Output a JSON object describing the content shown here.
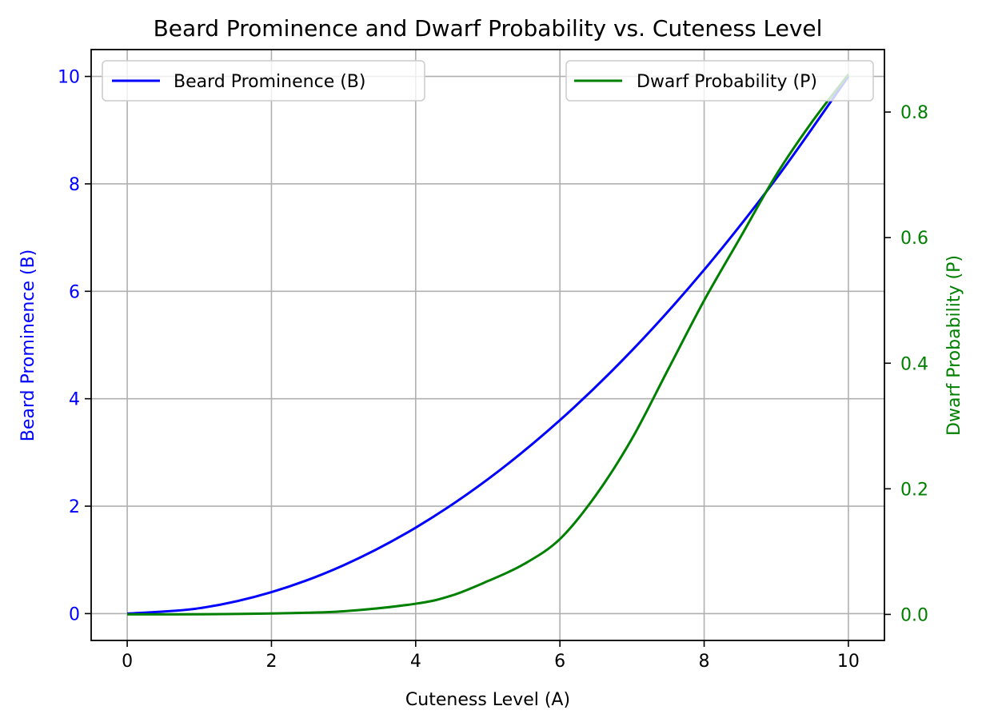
{
  "chart_data": {
    "type": "line",
    "title": "Beard Prominence and Dwarf Probability vs. Cuteness Level",
    "xlabel": "Cuteness Level (A)",
    "ylabel": "Beard Prominence (B)",
    "y2label": "Dwarf Probability (P)",
    "xlim": [
      -0.5,
      10.5
    ],
    "ylim": [
      -0.5,
      10.5
    ],
    "y2lim": [
      -0.0415,
      0.8995
    ],
    "x_ticks": [
      0,
      2,
      4,
      6,
      8,
      10
    ],
    "y_ticks": [
      0,
      2,
      4,
      6,
      8,
      10
    ],
    "y2_ticks": [
      0.0,
      0.2,
      0.4,
      0.6,
      0.8
    ],
    "x_tick_labels": [
      "0",
      "2",
      "4",
      "6",
      "8",
      "10"
    ],
    "y_tick_labels": [
      "0",
      "2",
      "4",
      "6",
      "8",
      "10"
    ],
    "y2_tick_labels": [
      "0.0",
      "0.2",
      "0.4",
      "0.6",
      "0.8"
    ],
    "grid": true,
    "series": [
      {
        "name": "Beard Prominence (B)",
        "axis": "left",
        "color": "#0000ff",
        "x": [
          0,
          1,
          2,
          3,
          4,
          5,
          6,
          7,
          8,
          9,
          10
        ],
        "values": [
          0,
          0.1,
          0.4,
          0.9,
          1.6,
          2.5,
          3.6,
          4.9,
          6.4,
          8.1,
          10
        ]
      },
      {
        "name": "Dwarf Probability (P)",
        "axis": "right",
        "color": "#008000",
        "x": [
          0,
          1,
          2,
          3,
          4,
          4.5,
          5,
          5.5,
          6,
          6.5,
          7,
          7.5,
          8,
          8.5,
          9,
          9.5,
          10
        ],
        "values": [
          0,
          0.0002,
          0.0015,
          0.005,
          0.017,
          0.03,
          0.053,
          0.08,
          0.12,
          0.19,
          0.28,
          0.39,
          0.5,
          0.6,
          0.7,
          0.785,
          0.86
        ]
      }
    ],
    "legend_left": {
      "position": "upper left",
      "label": "Beard Prominence (B)"
    },
    "legend_right": {
      "position": "upper right",
      "label": "Dwarf Probability (P)"
    },
    "colors": {
      "left_axis": "#0000ff",
      "right_axis": "#008000",
      "grid": "#b0b0b0",
      "text": "#000000"
    }
  }
}
